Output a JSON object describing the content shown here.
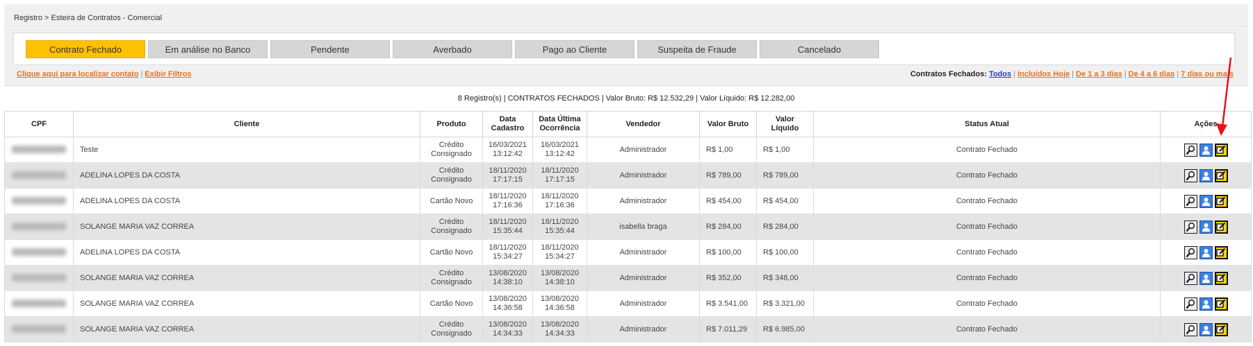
{
  "breadcrumb": "Registro > Esteira de Contratos - Comercial",
  "tabs": [
    {
      "label": "Contrato Fechado",
      "active": true
    },
    {
      "label": "Em análise no Banco",
      "active": false
    },
    {
      "label": "Pendente",
      "active": false
    },
    {
      "label": "Averbado",
      "active": false
    },
    {
      "label": "Pago ao Cliente",
      "active": false
    },
    {
      "label": "Suspeita de Fraude",
      "active": false
    },
    {
      "label": "Cancelado",
      "active": false
    }
  ],
  "links": {
    "find_contract": "Clique aqui para localizar contato",
    "show_filters": "Exibir Filtros",
    "separator": "|"
  },
  "closed_filter": {
    "label": "Contratos Fechados:",
    "all": "Todos",
    "today": "Incluídos Hoje",
    "d1_3": "De 1 a 3 dias",
    "d4_6": "De 4 a 6 dias",
    "d7": "7 dias ou mais"
  },
  "summary": "8 Registro(s) | CONTRATOS FECHADOS | Valor Bruto: R$ 12.532,29 | Valor Líquido: R$ 12.282,00",
  "columns": {
    "cpf": "CPF",
    "cliente": "Cliente",
    "produto": "Produto",
    "data_cadastro_1": "Data",
    "data_cadastro_2": "Cadastro",
    "data_ultima_1": "Data Última",
    "data_ultima_2": "Ocorrência",
    "vendedor": "Vendedor",
    "valor_bruto": "Valor Bruto",
    "valor_liquido_1": "Valor",
    "valor_liquido_2": "Líquido",
    "status": "Status Atual",
    "acoes": "Ações"
  },
  "rows": [
    {
      "cliente": "Teste",
      "produto_1": "Crédito",
      "produto_2": "Consignado",
      "cad_date": "16/03/2021",
      "cad_time": "13:12:42",
      "oc_date": "16/03/2021",
      "oc_time": "13:12:42",
      "vendedor": "Administrador",
      "bruto": "R$ 1,00",
      "liquido": "R$ 1,00",
      "status": "Contrato Fechado"
    },
    {
      "cliente": "ADELINA LOPES DA COSTA",
      "produto_1": "Crédito",
      "produto_2": "Consignado",
      "cad_date": "18/11/2020",
      "cad_time": "17:17:15",
      "oc_date": "18/11/2020",
      "oc_time": "17:17:15",
      "vendedor": "Administrador",
      "bruto": "R$ 789,00",
      "liquido": "R$ 789,00",
      "status": "Contrato Fechado"
    },
    {
      "cliente": "ADELINA LOPES DA COSTA",
      "produto_1": "Cartão Novo",
      "produto_2": "",
      "cad_date": "18/11/2020",
      "cad_time": "17:16:36",
      "oc_date": "18/11/2020",
      "oc_time": "17:16:36",
      "vendedor": "Administrador",
      "bruto": "R$ 454,00",
      "liquido": "R$ 454,00",
      "status": "Contrato Fechado"
    },
    {
      "cliente": "SOLANGE MARIA VAZ CORREA",
      "produto_1": "Crédito",
      "produto_2": "Consignado",
      "cad_date": "18/11/2020",
      "cad_time": "15:35:44",
      "oc_date": "18/11/2020",
      "oc_time": "15:35:44",
      "vendedor": "isabella braga",
      "bruto": "R$ 284,00",
      "liquido": "R$ 284,00",
      "status": "Contrato Fechado"
    },
    {
      "cliente": "ADELINA LOPES DA COSTA",
      "produto_1": "Cartão Novo",
      "produto_2": "",
      "cad_date": "18/11/2020",
      "cad_time": "15:34:27",
      "oc_date": "18/11/2020",
      "oc_time": "15:34:27",
      "vendedor": "Administrador",
      "bruto": "R$ 100,00",
      "liquido": "R$ 100,00",
      "status": "Contrato Fechado"
    },
    {
      "cliente": "SOLANGE MARIA VAZ CORREA",
      "produto_1": "Crédito",
      "produto_2": "Consignado",
      "cad_date": "13/08/2020",
      "cad_time": "14:38:10",
      "oc_date": "13/08/2020",
      "oc_time": "14:38:10",
      "vendedor": "Administrador",
      "bruto": "R$ 352,00",
      "liquido": "R$ 348,00",
      "status": "Contrato Fechado"
    },
    {
      "cliente": "SOLANGE MARIA VAZ CORREA",
      "produto_1": "Cartão Novo",
      "produto_2": "",
      "cad_date": "13/08/2020",
      "cad_time": "14:36:58",
      "oc_date": "13/08/2020",
      "oc_time": "14:36:58",
      "vendedor": "Administrador",
      "bruto": "R$ 3.541,00",
      "liquido": "R$ 3.321,00",
      "status": "Contrato Fechado"
    },
    {
      "cliente": "SOLANGE MARIA VAZ CORREA",
      "produto_1": "Crédito",
      "produto_2": "Consignado",
      "cad_date": "13/08/2020",
      "cad_time": "14:34:33",
      "oc_date": "13/08/2020",
      "oc_time": "14:34:33",
      "vendedor": "Administrador",
      "bruto": "R$ 7.011,29",
      "liquido": "R$ 6.985,00",
      "status": "Contrato Fechado"
    }
  ],
  "action_icons": [
    "magnifier-icon",
    "user-icon",
    "edit-icon"
  ],
  "colors": {
    "active_tab": "#ffc000",
    "inactive_tab": "#d6d6d6",
    "link_orange": "#e8711a",
    "link_blue": "#1f3fbf",
    "row_alt": "#e4e4e4",
    "annotation_arrow": "#e8111a"
  }
}
